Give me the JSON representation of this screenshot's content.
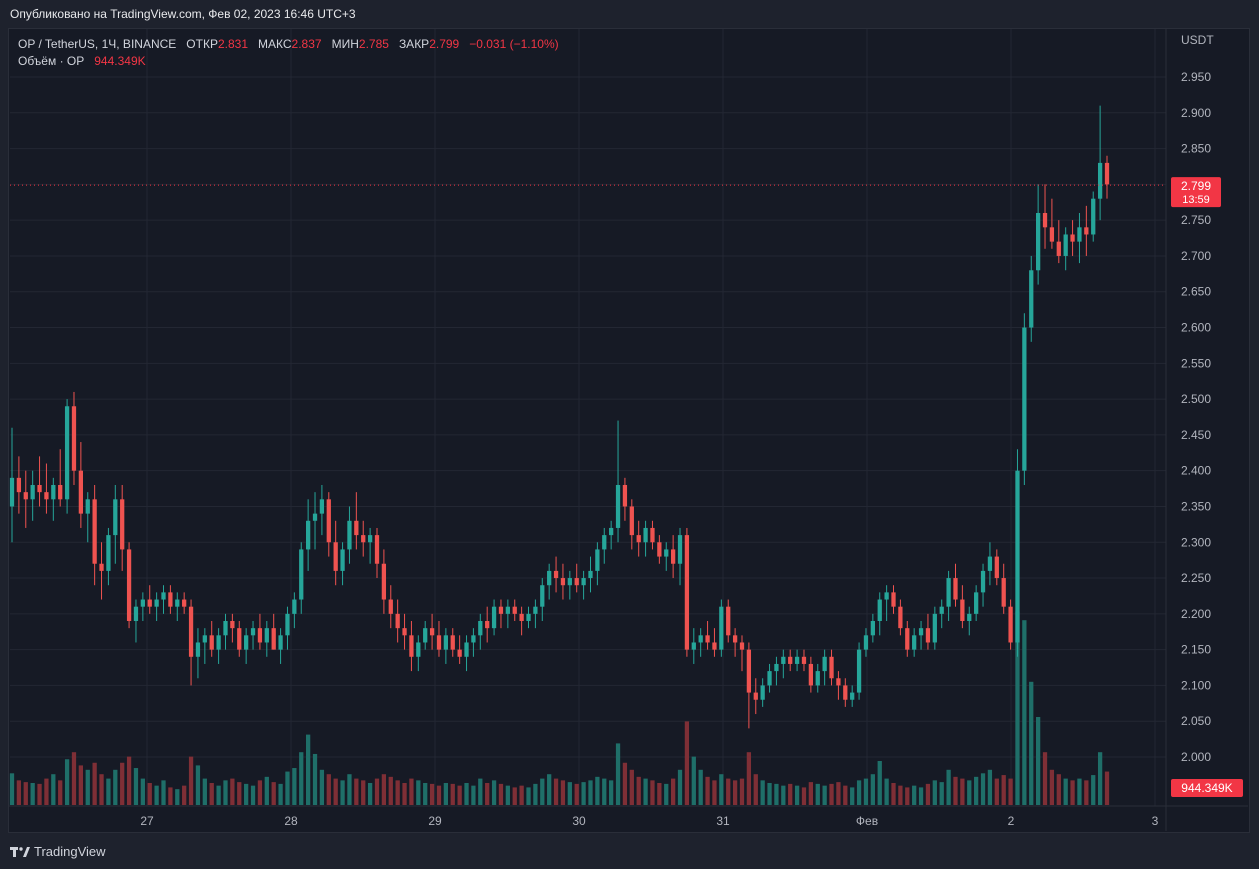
{
  "header": {
    "published": "Опубликовано на TradingView.com, Фев 02, 2023 16:46 UTC+3"
  },
  "legend": {
    "symbol": "OP / TetherUS, 1Ч, BINANCE",
    "open_label": "ОТКР",
    "open": "2.831",
    "high_label": "МАКС",
    "high": "2.837",
    "low_label": "МИН",
    "low": "2.785",
    "close_label": "ЗАКР",
    "close": "2.799",
    "change": "−0.031 (−1.10%)",
    "volume_label": "Объём · OP",
    "volume": "944.349K"
  },
  "axis": {
    "currency": "USDT",
    "price_ticks": [
      "2.950",
      "2.900",
      "2.850",
      "2.800",
      "2.750",
      "2.700",
      "2.650",
      "2.600",
      "2.550",
      "2.500",
      "2.450",
      "2.400",
      "2.350",
      "2.300",
      "2.250",
      "2.200",
      "2.150",
      "2.100",
      "2.050",
      "2.000"
    ],
    "time_ticks": [
      "27",
      "28",
      "29",
      "30",
      "31",
      "Фев",
      "2",
      "3"
    ]
  },
  "last_price": {
    "price": "2.799",
    "countdown": "13:59",
    "volume": "944.349K"
  },
  "footer": {
    "brand": "TradingView"
  },
  "colors": {
    "up": "#26a69a",
    "down": "#ef5350",
    "vol_up": "#1f6f69",
    "vol_down": "#7f2f36",
    "price_line": "#f23645"
  },
  "chart_data": {
    "type": "candlestick",
    "title": "OP / TetherUS, 1Ч, BINANCE",
    "ylabel": "USDT",
    "ylim": [
      1.97,
      3.0
    ],
    "grid": true,
    "x_ticks": [
      "27",
      "28",
      "29",
      "30",
      "31",
      "Фев",
      "2",
      "3"
    ],
    "candles": [
      [
        2.35,
        2.46,
        2.3,
        2.39,
        36
      ],
      [
        2.39,
        2.42,
        2.34,
        2.37,
        28
      ],
      [
        2.37,
        2.4,
        2.32,
        2.36,
        26
      ],
      [
        2.36,
        2.4,
        2.33,
        2.38,
        25
      ],
      [
        2.38,
        2.42,
        2.35,
        2.37,
        24
      ],
      [
        2.37,
        2.41,
        2.34,
        2.36,
        30
      ],
      [
        2.36,
        2.39,
        2.33,
        2.38,
        35
      ],
      [
        2.38,
        2.43,
        2.35,
        2.36,
        28
      ],
      [
        2.36,
        2.5,
        2.34,
        2.49,
        52
      ],
      [
        2.49,
        2.51,
        2.38,
        2.4,
        60
      ],
      [
        2.4,
        2.44,
        2.32,
        2.34,
        45
      ],
      [
        2.34,
        2.37,
        2.3,
        2.36,
        40
      ],
      [
        2.36,
        2.38,
        2.24,
        2.27,
        48
      ],
      [
        2.27,
        2.3,
        2.22,
        2.26,
        35
      ],
      [
        2.26,
        2.32,
        2.24,
        2.31,
        30
      ],
      [
        2.31,
        2.38,
        2.27,
        2.36,
        40
      ],
      [
        2.36,
        2.38,
        2.26,
        2.29,
        48
      ],
      [
        2.29,
        2.3,
        2.18,
        2.19,
        55
      ],
      [
        2.19,
        2.22,
        2.16,
        2.21,
        42
      ],
      [
        2.21,
        2.23,
        2.19,
        2.22,
        30
      ],
      [
        2.22,
        2.24,
        2.2,
        2.21,
        25
      ],
      [
        2.21,
        2.23,
        2.19,
        2.22,
        22
      ],
      [
        2.22,
        2.24,
        2.2,
        2.23,
        28
      ],
      [
        2.23,
        2.24,
        2.2,
        2.21,
        20
      ],
      [
        2.21,
        2.23,
        2.19,
        2.22,
        18
      ],
      [
        2.22,
        2.23,
        2.2,
        2.21,
        22
      ],
      [
        2.21,
        2.22,
        2.1,
        2.14,
        55
      ],
      [
        2.14,
        2.18,
        2.11,
        2.16,
        45
      ],
      [
        2.16,
        2.18,
        2.13,
        2.17,
        30
      ],
      [
        2.17,
        2.19,
        2.14,
        2.15,
        25
      ],
      [
        2.15,
        2.18,
        2.13,
        2.17,
        22
      ],
      [
        2.17,
        2.2,
        2.15,
        2.19,
        28
      ],
      [
        2.19,
        2.2,
        2.16,
        2.18,
        30
      ],
      [
        2.18,
        2.19,
        2.14,
        2.15,
        26
      ],
      [
        2.15,
        2.18,
        2.13,
        2.17,
        24
      ],
      [
        2.17,
        2.19,
        2.15,
        2.18,
        22
      ],
      [
        2.18,
        2.2,
        2.15,
        2.16,
        28
      ],
      [
        2.16,
        2.19,
        2.14,
        2.18,
        32
      ],
      [
        2.18,
        2.2,
        2.15,
        2.15,
        26
      ],
      [
        2.15,
        2.18,
        2.13,
        2.17,
        24
      ],
      [
        2.17,
        2.21,
        2.15,
        2.2,
        38
      ],
      [
        2.2,
        2.23,
        2.18,
        2.22,
        42
      ],
      [
        2.22,
        2.3,
        2.2,
        2.29,
        60
      ],
      [
        2.29,
        2.36,
        2.26,
        2.33,
        80
      ],
      [
        2.33,
        2.37,
        2.29,
        2.34,
        58
      ],
      [
        2.34,
        2.38,
        2.31,
        2.36,
        40
      ],
      [
        2.36,
        2.37,
        2.28,
        2.3,
        35
      ],
      [
        2.3,
        2.33,
        2.24,
        2.26,
        30
      ],
      [
        2.26,
        2.3,
        2.24,
        2.29,
        28
      ],
      [
        2.29,
        2.35,
        2.27,
        2.33,
        35
      ],
      [
        2.33,
        2.37,
        2.29,
        2.31,
        30
      ],
      [
        2.31,
        2.33,
        2.28,
        2.3,
        28
      ],
      [
        2.3,
        2.32,
        2.27,
        2.31,
        25
      ],
      [
        2.31,
        2.32,
        2.25,
        2.27,
        30
      ],
      [
        2.27,
        2.29,
        2.2,
        2.22,
        35
      ],
      [
        2.22,
        2.24,
        2.18,
        2.2,
        32
      ],
      [
        2.2,
        2.22,
        2.16,
        2.18,
        28
      ],
      [
        2.18,
        2.2,
        2.15,
        2.17,
        25
      ],
      [
        2.17,
        2.19,
        2.12,
        2.14,
        30
      ],
      [
        2.14,
        2.17,
        2.12,
        2.16,
        28
      ],
      [
        2.16,
        2.19,
        2.15,
        2.18,
        25
      ],
      [
        2.18,
        2.2,
        2.15,
        2.17,
        24
      ],
      [
        2.17,
        2.19,
        2.14,
        2.15,
        22
      ],
      [
        2.15,
        2.18,
        2.13,
        2.17,
        25
      ],
      [
        2.17,
        2.18,
        2.14,
        2.15,
        24
      ],
      [
        2.15,
        2.17,
        2.13,
        2.14,
        22
      ],
      [
        2.14,
        2.17,
        2.12,
        2.16,
        25
      ],
      [
        2.16,
        2.18,
        2.14,
        2.17,
        22
      ],
      [
        2.17,
        2.2,
        2.15,
        2.19,
        30
      ],
      [
        2.19,
        2.21,
        2.16,
        2.18,
        25
      ],
      [
        2.18,
        2.22,
        2.17,
        2.21,
        28
      ],
      [
        2.21,
        2.22,
        2.18,
        2.2,
        24
      ],
      [
        2.2,
        2.22,
        2.18,
        2.21,
        22
      ],
      [
        2.21,
        2.22,
        2.19,
        2.2,
        20
      ],
      [
        2.2,
        2.21,
        2.17,
        2.19,
        22
      ],
      [
        2.19,
        2.21,
        2.18,
        2.2,
        20
      ],
      [
        2.2,
        2.22,
        2.18,
        2.21,
        24
      ],
      [
        2.21,
        2.25,
        2.19,
        2.24,
        30
      ],
      [
        2.24,
        2.27,
        2.22,
        2.26,
        35
      ],
      [
        2.26,
        2.28,
        2.23,
        2.25,
        30
      ],
      [
        2.25,
        2.27,
        2.22,
        2.24,
        28
      ],
      [
        2.24,
        2.26,
        2.22,
        2.25,
        26
      ],
      [
        2.25,
        2.27,
        2.23,
        2.24,
        24
      ],
      [
        2.24,
        2.26,
        2.22,
        2.25,
        26
      ],
      [
        2.25,
        2.28,
        2.23,
        2.26,
        28
      ],
      [
        2.26,
        2.3,
        2.24,
        2.29,
        32
      ],
      [
        2.29,
        2.32,
        2.27,
        2.31,
        30
      ],
      [
        2.31,
        2.33,
        2.29,
        2.32,
        28
      ],
      [
        2.32,
        2.47,
        2.3,
        2.38,
        70
      ],
      [
        2.38,
        2.39,
        2.33,
        2.35,
        48
      ],
      [
        2.35,
        2.36,
        2.29,
        2.31,
        40
      ],
      [
        2.31,
        2.33,
        2.28,
        2.3,
        32
      ],
      [
        2.3,
        2.33,
        2.28,
        2.32,
        30
      ],
      [
        2.32,
        2.33,
        2.29,
        2.3,
        28
      ],
      [
        2.3,
        2.31,
        2.27,
        2.28,
        25
      ],
      [
        2.28,
        2.3,
        2.26,
        2.29,
        24
      ],
      [
        2.29,
        2.31,
        2.25,
        2.27,
        30
      ],
      [
        2.27,
        2.32,
        2.24,
        2.31,
        40
      ],
      [
        2.31,
        2.32,
        2.14,
        2.15,
        95
      ],
      [
        2.15,
        2.18,
        2.13,
        2.16,
        55
      ],
      [
        2.16,
        2.18,
        2.14,
        2.17,
        40
      ],
      [
        2.17,
        2.19,
        2.15,
        2.16,
        32
      ],
      [
        2.16,
        2.18,
        2.14,
        2.15,
        28
      ],
      [
        2.15,
        2.22,
        2.14,
        2.21,
        35
      ],
      [
        2.21,
        2.22,
        2.16,
        2.17,
        30
      ],
      [
        2.17,
        2.18,
        2.14,
        2.16,
        28
      ],
      [
        2.16,
        2.17,
        2.12,
        2.15,
        30
      ],
      [
        2.15,
        2.16,
        2.04,
        2.09,
        60
      ],
      [
        2.09,
        2.11,
        2.06,
        2.08,
        35
      ],
      [
        2.08,
        2.11,
        2.07,
        2.1,
        28
      ],
      [
        2.1,
        2.13,
        2.09,
        2.12,
        25
      ],
      [
        2.12,
        2.14,
        2.1,
        2.13,
        24
      ],
      [
        2.13,
        2.15,
        2.11,
        2.14,
        22
      ],
      [
        2.14,
        2.15,
        2.12,
        2.13,
        24
      ],
      [
        2.13,
        2.15,
        2.12,
        2.14,
        22
      ],
      [
        2.14,
        2.15,
        2.12,
        2.13,
        20
      ],
      [
        2.13,
        2.14,
        2.09,
        2.1,
        26
      ],
      [
        2.1,
        2.13,
        2.09,
        2.12,
        24
      ],
      [
        2.12,
        2.15,
        2.1,
        2.14,
        22
      ],
      [
        2.14,
        2.15,
        2.1,
        2.11,
        24
      ],
      [
        2.11,
        2.12,
        2.08,
        2.1,
        26
      ],
      [
        2.1,
        2.11,
        2.07,
        2.08,
        22
      ],
      [
        2.08,
        2.1,
        2.07,
        2.09,
        20
      ],
      [
        2.09,
        2.16,
        2.08,
        2.15,
        28
      ],
      [
        2.15,
        2.18,
        2.14,
        2.17,
        30
      ],
      [
        2.17,
        2.2,
        2.16,
        2.19,
        35
      ],
      [
        2.19,
        2.23,
        2.17,
        2.22,
        50
      ],
      [
        2.22,
        2.24,
        2.19,
        2.23,
        30
      ],
      [
        2.23,
        2.24,
        2.2,
        2.21,
        25
      ],
      [
        2.21,
        2.22,
        2.17,
        2.18,
        22
      ],
      [
        2.18,
        2.19,
        2.14,
        2.15,
        20
      ],
      [
        2.15,
        2.18,
        2.14,
        2.17,
        22
      ],
      [
        2.17,
        2.19,
        2.15,
        2.18,
        20
      ],
      [
        2.18,
        2.2,
        2.15,
        2.16,
        24
      ],
      [
        2.16,
        2.21,
        2.15,
        2.2,
        28
      ],
      [
        2.2,
        2.22,
        2.18,
        2.21,
        26
      ],
      [
        2.21,
        2.26,
        2.19,
        2.25,
        40
      ],
      [
        2.25,
        2.27,
        2.21,
        2.22,
        32
      ],
      [
        2.22,
        2.24,
        2.18,
        2.19,
        30
      ],
      [
        2.19,
        2.21,
        2.17,
        2.2,
        28
      ],
      [
        2.2,
        2.24,
        2.19,
        2.23,
        32
      ],
      [
        2.23,
        2.27,
        2.21,
        2.26,
        36
      ],
      [
        2.26,
        2.3,
        2.24,
        2.28,
        40
      ],
      [
        2.28,
        2.29,
        2.24,
        2.25,
        30
      ],
      [
        2.25,
        2.27,
        2.2,
        2.21,
        34
      ],
      [
        2.21,
        2.22,
        2.15,
        2.16,
        30
      ],
      [
        2.16,
        2.43,
        2.14,
        2.4,
        220
      ],
      [
        2.4,
        2.62,
        2.38,
        2.6,
        210
      ],
      [
        2.6,
        2.7,
        2.58,
        2.68,
        140
      ],
      [
        2.68,
        2.8,
        2.66,
        2.76,
        100
      ],
      [
        2.76,
        2.8,
        2.71,
        2.74,
        60
      ],
      [
        2.74,
        2.78,
        2.71,
        2.72,
        40
      ],
      [
        2.72,
        2.75,
        2.69,
        2.7,
        35
      ],
      [
        2.7,
        2.74,
        2.68,
        2.73,
        30
      ],
      [
        2.73,
        2.75,
        2.7,
        2.72,
        28
      ],
      [
        2.72,
        2.76,
        2.69,
        2.74,
        30
      ],
      [
        2.74,
        2.77,
        2.7,
        2.73,
        28
      ],
      [
        2.73,
        2.79,
        2.72,
        2.78,
        34
      ],
      [
        2.78,
        2.91,
        2.75,
        2.83,
        60
      ],
      [
        2.83,
        2.84,
        2.78,
        2.8,
        38
      ]
    ]
  }
}
